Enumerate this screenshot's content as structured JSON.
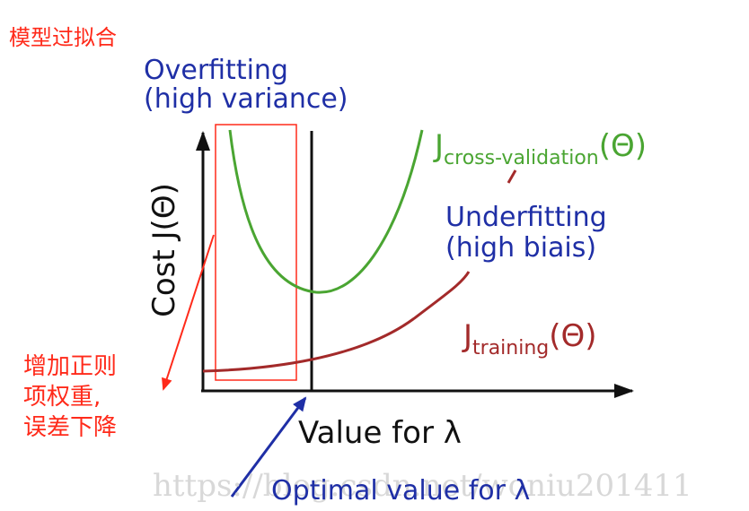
{
  "annotation_overfit_cn": "模型过拟合",
  "overfitting": {
    "line1": "Overfitting",
    "line2": "(high variance)"
  },
  "underfitting": {
    "line1": "Underfitting",
    "line2": "(high biais)"
  },
  "y_axis_label": "Cost J(Θ)",
  "x_axis_label": "Value for λ",
  "optimal_label": "Optimal value for λ",
  "cv_curve": {
    "main": "J",
    "sub": "cross-validation",
    "arg": "(Θ)"
  },
  "train_curve": {
    "main": "J",
    "sub": "training",
    "arg": "(Θ)"
  },
  "regularization_note": {
    "line1": "增加正则",
    "line2": "项权重,",
    "line3": "误差下降"
  },
  "watermark": "https://blog.csdn.net/woniu201411",
  "colors": {
    "annotation_red": "#ff2a1a",
    "label_blue": "#1f2fa6",
    "cv_green": "#4aa532",
    "train_brown": "#a32a2a",
    "axis_black": "#111111"
  }
}
